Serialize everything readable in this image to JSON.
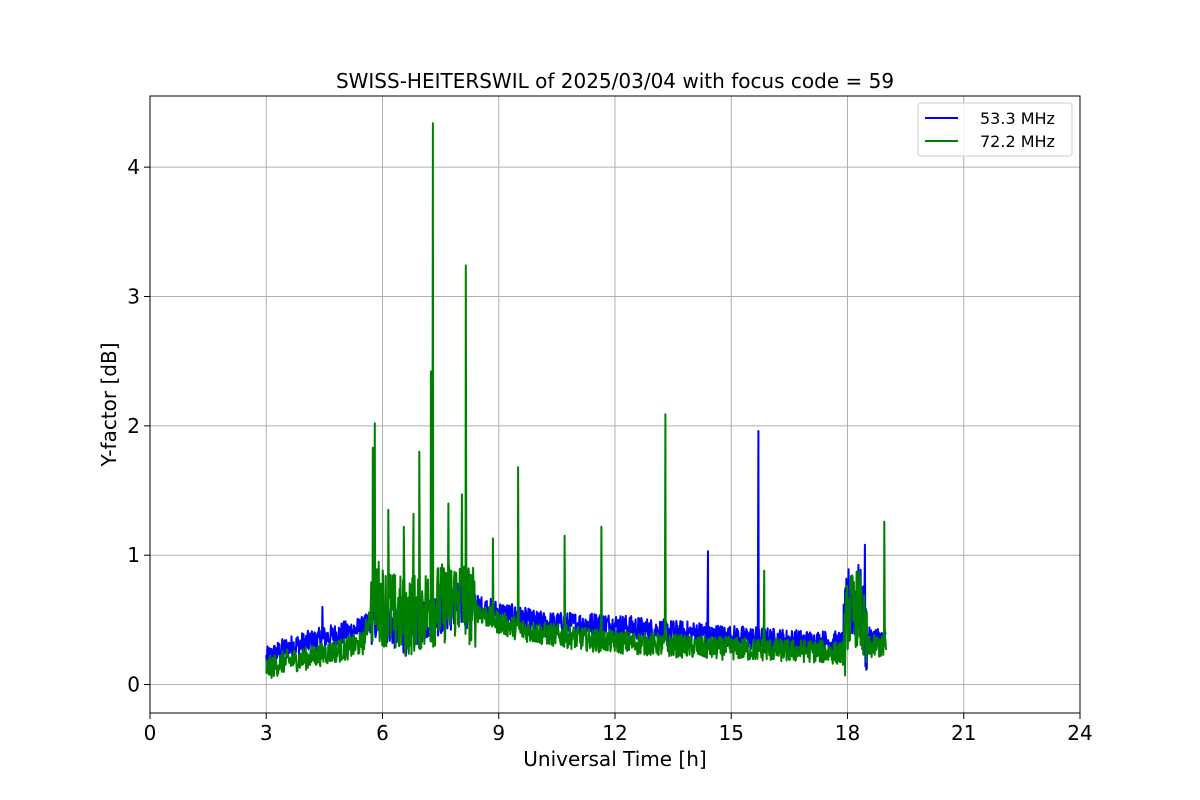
{
  "chart_data": {
    "type": "line",
    "title": "SWISS-HEITERSWIL of 2025/03/04 with focus code = 59",
    "xlabel": "Universal Time [h]",
    "ylabel": "Y-factor [dB]",
    "xlim": [
      0,
      24
    ],
    "ylim": [
      -0.22,
      4.55
    ],
    "xticks": [
      0,
      3,
      6,
      9,
      12,
      15,
      18,
      21,
      24
    ],
    "xtick_labels": [
      "0",
      "3",
      "6",
      "9",
      "12",
      "15",
      "18",
      "21",
      "24"
    ],
    "yticks": [
      0,
      1,
      2,
      3,
      4
    ],
    "ytick_labels": [
      "0",
      "1",
      "2",
      "3",
      "4"
    ],
    "grid": true,
    "legend_position": "top-right",
    "colors": {
      "series_1": "#0000ff",
      "series_2": "#008000"
    },
    "series": [
      {
        "name": "53.3 MHz",
        "color": "#0000ff",
        "x": [
          3.0,
          3.5,
          4.0,
          4.5,
          5.0,
          5.5,
          5.8,
          6.0,
          6.3,
          6.6,
          7.0,
          7.5,
          8.0,
          8.5,
          9.0,
          9.5,
          10.0,
          10.5,
          11.0,
          11.5,
          12.0,
          12.5,
          13.0,
          13.5,
          14.0,
          14.4,
          14.5,
          15.0,
          15.5,
          15.7,
          16.0,
          16.5,
          17.0,
          17.5,
          17.9,
          18.0,
          18.3,
          18.5,
          18.8,
          19.0
        ],
        "y": [
          0.2,
          0.28,
          0.32,
          0.36,
          0.4,
          0.44,
          0.5,
          0.52,
          0.45,
          0.4,
          0.5,
          0.56,
          0.62,
          0.6,
          0.56,
          0.52,
          0.48,
          0.47,
          0.47,
          0.47,
          0.46,
          0.44,
          0.42,
          0.41,
          0.4,
          0.4,
          0.38,
          0.37,
          0.36,
          0.36,
          0.35,
          0.34,
          0.33,
          0.33,
          0.32,
          0.62,
          0.65,
          0.35,
          0.36,
          0.34
        ],
        "spikes": [
          [
            4.45,
            0.6
          ],
          [
            14.4,
            1.03
          ],
          [
            15.7,
            1.96
          ],
          [
            18.45,
            1.08
          ]
        ]
      },
      {
        "name": "72.2 MHz",
        "color": "#008000",
        "x": [
          3.0,
          3.5,
          4.0,
          4.5,
          5.0,
          5.5,
          5.8,
          6.0,
          6.3,
          6.6,
          7.0,
          7.5,
          8.0,
          8.5,
          9.0,
          9.5,
          10.0,
          10.5,
          11.0,
          11.5,
          12.0,
          12.5,
          13.0,
          13.5,
          14.0,
          14.5,
          15.0,
          15.5,
          16.0,
          16.5,
          17.0,
          17.5,
          17.9,
          18.0,
          18.3,
          18.5,
          18.8,
          19.0
        ],
        "y": [
          0.12,
          0.18,
          0.2,
          0.24,
          0.27,
          0.32,
          0.7,
          0.62,
          0.55,
          0.52,
          0.58,
          0.62,
          0.68,
          0.56,
          0.48,
          0.43,
          0.4,
          0.38,
          0.36,
          0.34,
          0.33,
          0.32,
          0.31,
          0.3,
          0.29,
          0.28,
          0.28,
          0.27,
          0.27,
          0.26,
          0.26,
          0.25,
          0.24,
          0.55,
          0.6,
          0.28,
          0.3,
          0.27
        ],
        "spikes": [
          [
            5.75,
            1.83
          ],
          [
            5.8,
            2.02
          ],
          [
            6.15,
            1.35
          ],
          [
            6.55,
            1.22
          ],
          [
            6.8,
            1.32
          ],
          [
            6.95,
            1.8
          ],
          [
            7.25,
            2.42
          ],
          [
            7.3,
            4.34
          ],
          [
            7.7,
            1.4
          ],
          [
            8.05,
            1.47
          ],
          [
            8.15,
            3.24
          ],
          [
            8.85,
            1.13
          ],
          [
            9.5,
            1.68
          ],
          [
            10.7,
            1.15
          ],
          [
            11.65,
            1.22
          ],
          [
            13.3,
            2.09
          ],
          [
            15.85,
            0.88
          ],
          [
            18.95,
            1.26
          ]
        ]
      }
    ]
  }
}
